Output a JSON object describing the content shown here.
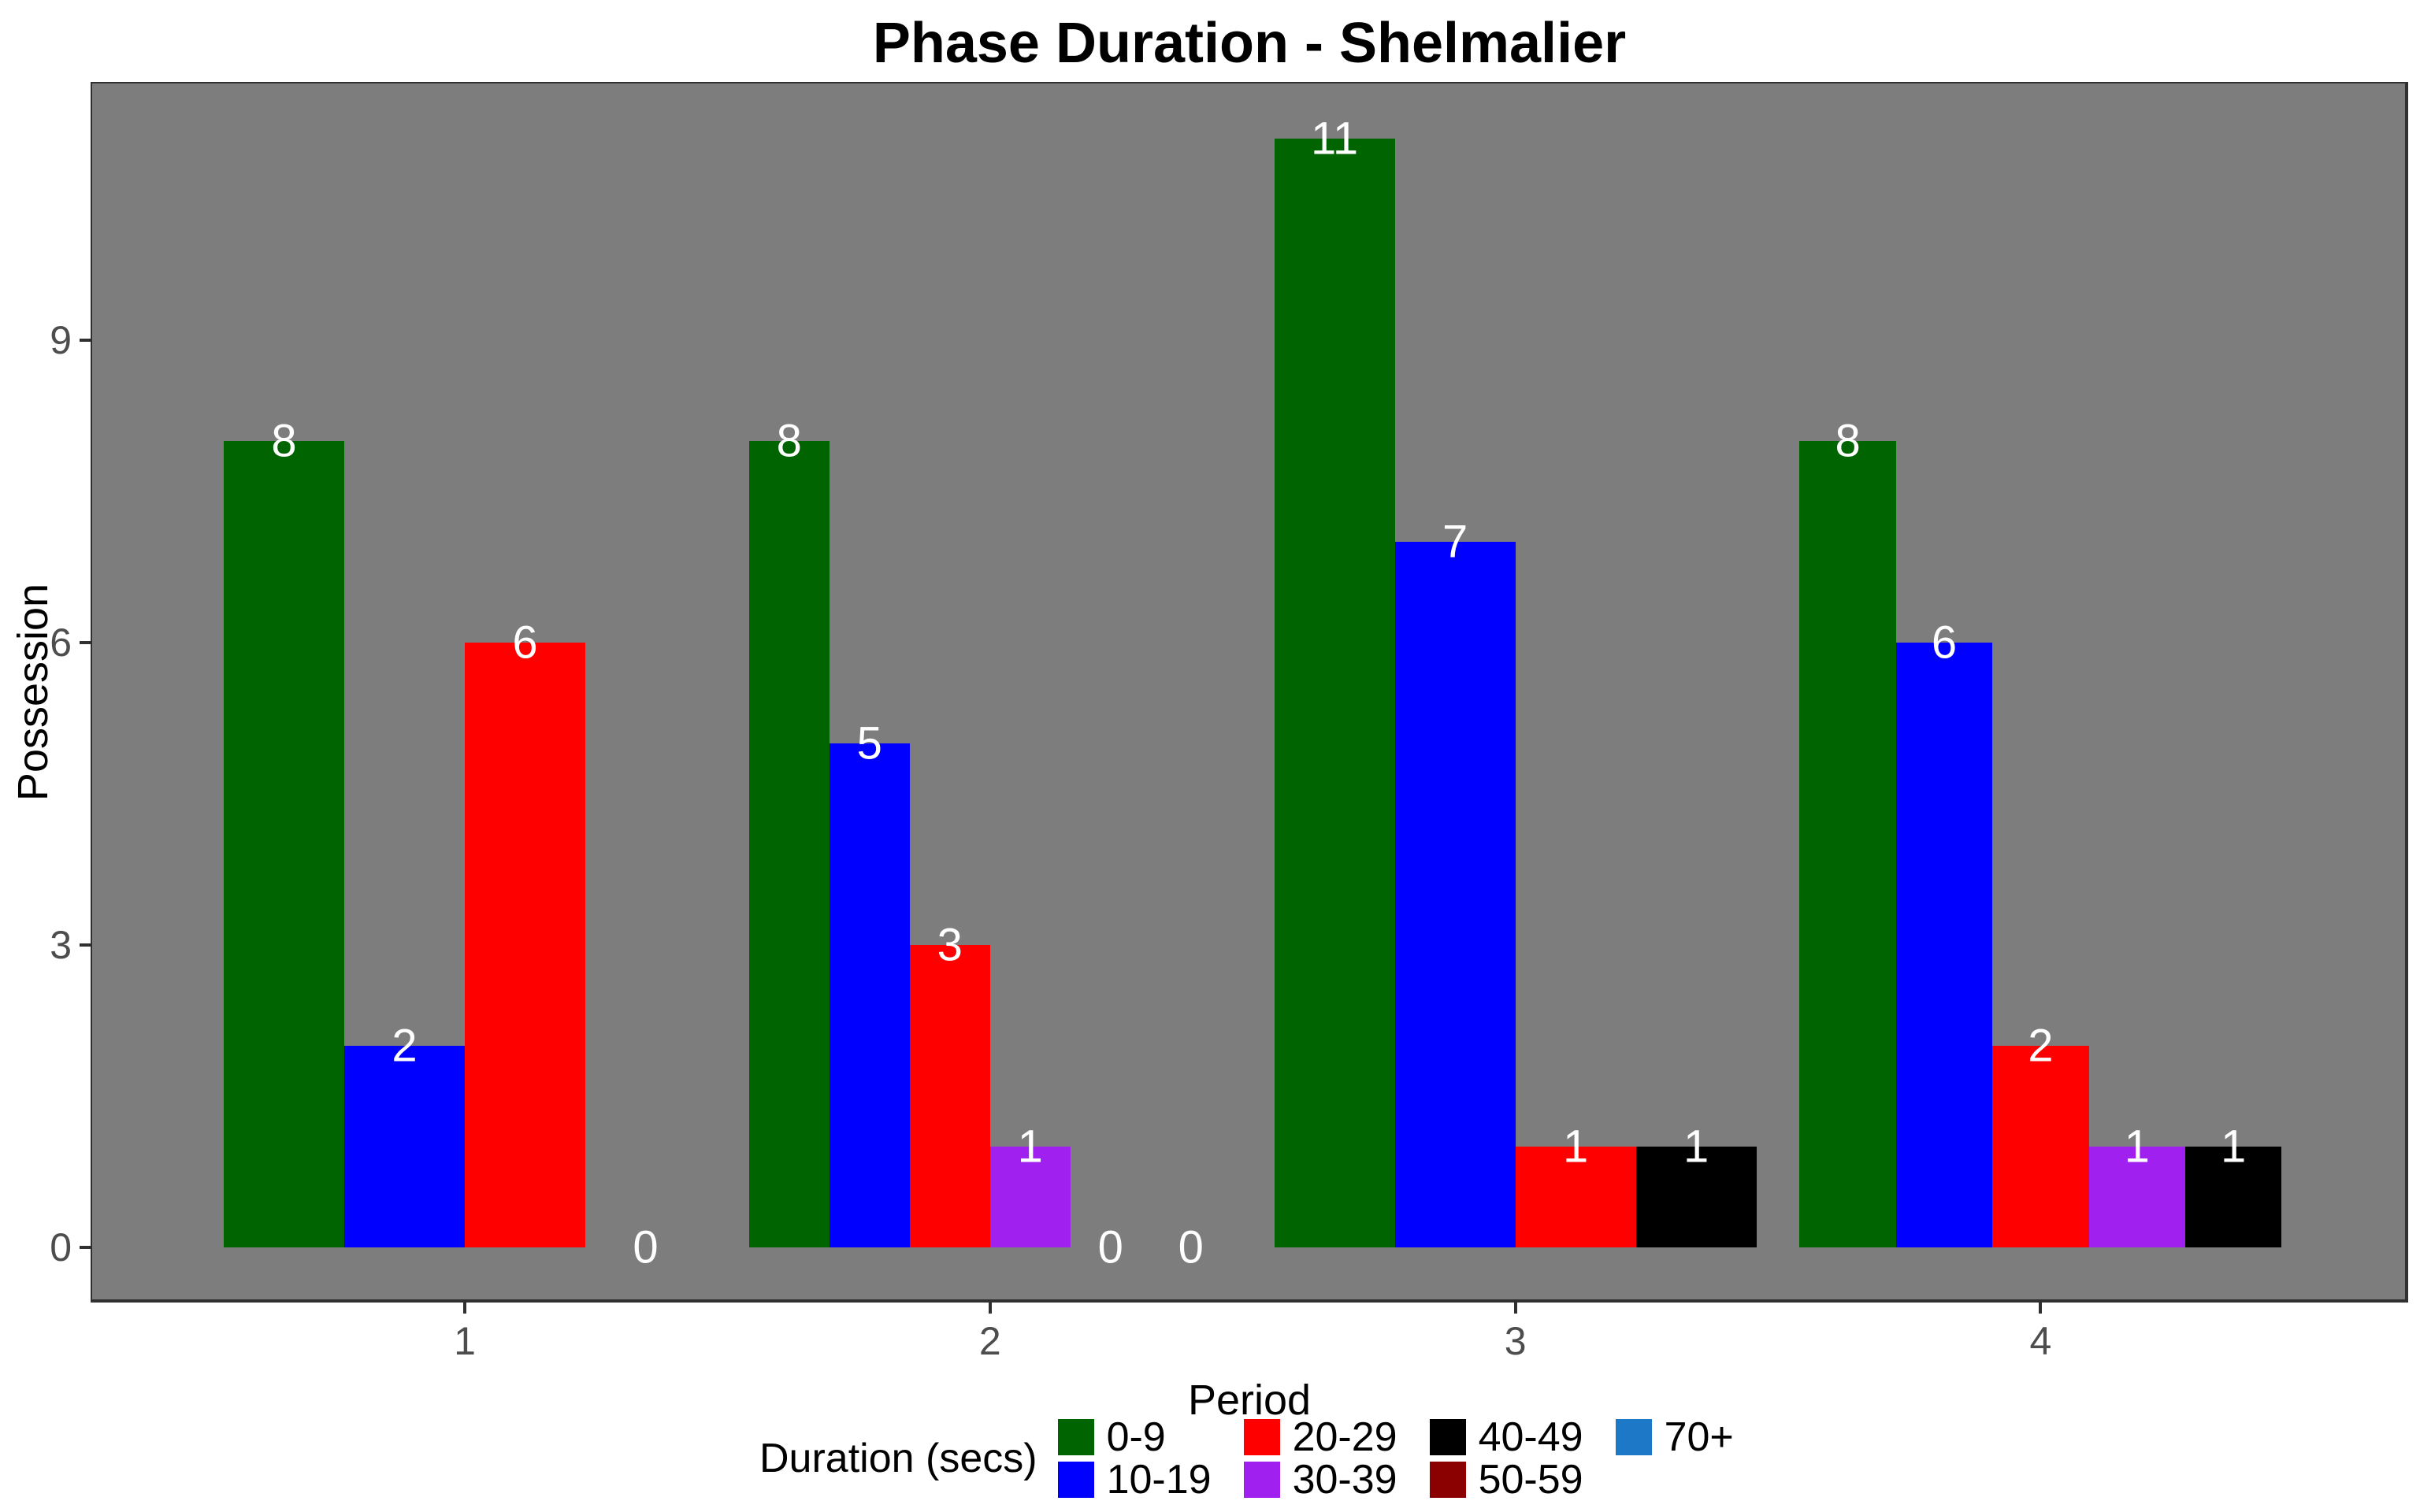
{
  "chart_data": {
    "type": "bar",
    "title": "Phase Duration - Shelmalier",
    "xlabel": "Period",
    "ylabel": "Possession",
    "legend_title": "Duration (secs)",
    "legend_position": "bottom",
    "grid": false,
    "y_ticks": [
      0,
      3,
      6,
      9
    ],
    "ylim": [
      0,
      11.6
    ],
    "categories": [
      "0-9",
      "10-19",
      "20-29",
      "30-39",
      "40-49",
      "50-59",
      "70+"
    ],
    "legend_items": [
      {
        "label": "0-9",
        "color": "#006400"
      },
      {
        "label": "10-19",
        "color": "#0000FF"
      },
      {
        "label": "20-29",
        "color": "#FF0000"
      },
      {
        "label": "30-39",
        "color": "#A020F0"
      },
      {
        "label": "40-49",
        "color": "#000000"
      },
      {
        "label": "50-59",
        "color": "#8B0000"
      },
      {
        "label": "70+",
        "color": "#1E78C8"
      }
    ],
    "colors": {
      "0-9": "#006400",
      "10-19": "#0000FF",
      "20-29": "#FF0000",
      "30-39": "#A020F0",
      "40-49": "#000000",
      "50-59": "#8B0000",
      "70+": "#1E78C8"
    },
    "groups": [
      {
        "period": "1",
        "bars": [
          {
            "category": "0-9",
            "value": 8
          },
          {
            "category": "10-19",
            "value": 2
          },
          {
            "category": "20-29",
            "value": 6
          },
          {
            "category": "30-39",
            "value": 0
          }
        ]
      },
      {
        "period": "2",
        "bars": [
          {
            "category": "0-9",
            "value": 8
          },
          {
            "category": "10-19",
            "value": 5
          },
          {
            "category": "20-29",
            "value": 3
          },
          {
            "category": "30-39",
            "value": 1
          },
          {
            "category": "40-49",
            "value": 0
          },
          {
            "category": "50-59",
            "value": 0
          }
        ]
      },
      {
        "period": "3",
        "bars": [
          {
            "category": "0-9",
            "value": 11
          },
          {
            "category": "10-19",
            "value": 7
          },
          {
            "category": "20-29",
            "value": 1
          },
          {
            "category": "40-49",
            "value": 1
          }
        ]
      },
      {
        "period": "4",
        "bars": [
          {
            "category": "0-9",
            "value": 8
          },
          {
            "category": "10-19",
            "value": 6
          },
          {
            "category": "20-29",
            "value": 2
          },
          {
            "category": "30-39",
            "value": 1
          },
          {
            "category": "40-49",
            "value": 1
          }
        ]
      }
    ],
    "style": {
      "background": "#FFFFFF",
      "panel_bg": "#7D7D7D",
      "panel_border": "#303030",
      "bar_label_color": "#FFFFFF",
      "tick_label_color": "#4D4D4D",
      "tick_mark_color": "#303030",
      "axis_title_color": "#000000",
      "title_color": "#000000"
    }
  }
}
